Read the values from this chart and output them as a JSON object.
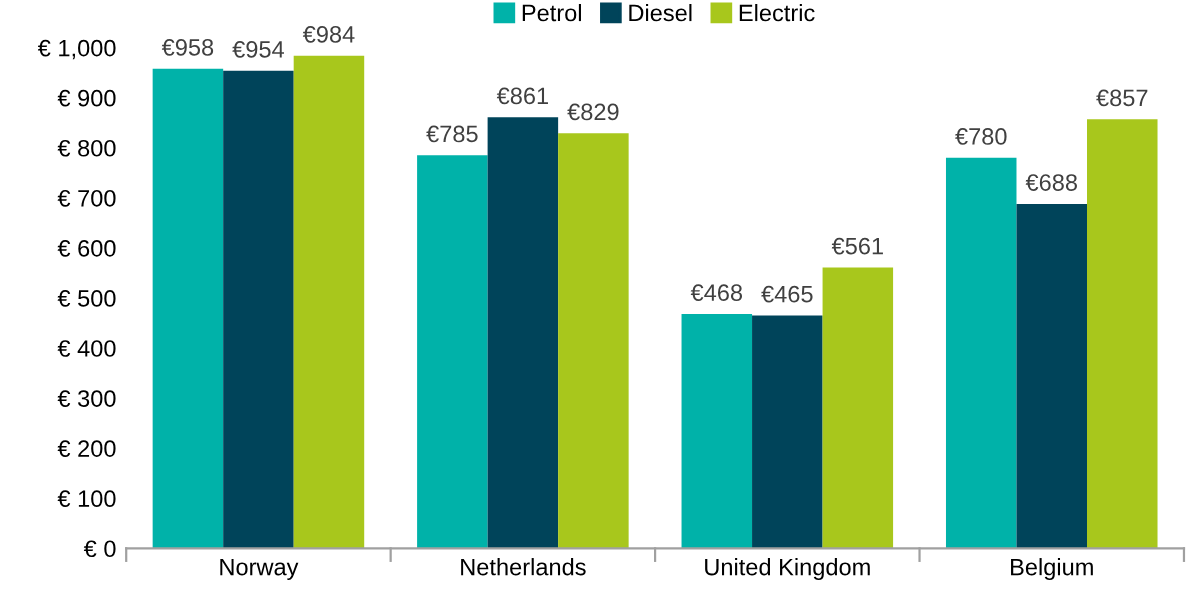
{
  "chart_data": {
    "type": "bar",
    "categories": [
      "Norway",
      "Netherlands",
      "United Kingdom",
      "Belgium"
    ],
    "series": [
      {
        "name": "Petrol",
        "color": "#00b2a9",
        "values": [
          958,
          785,
          468,
          780
        ],
        "value_labels": [
          "€958",
          "€785",
          "€468",
          "€780"
        ]
      },
      {
        "name": "Diesel",
        "color": "#00445a",
        "values": [
          954,
          861,
          465,
          688
        ],
        "value_labels": [
          "€954",
          "€861",
          "€465",
          "€688"
        ]
      },
      {
        "name": "Electric",
        "color": "#a8c71c",
        "values": [
          984,
          829,
          561,
          857
        ],
        "value_labels": [
          "€984",
          "€829",
          "€561",
          "€857"
        ]
      }
    ],
    "ylim": [
      0,
      1000
    ],
    "yticks": [
      {
        "value": 0,
        "label": "€ 0"
      },
      {
        "value": 100,
        "label": "€ 100"
      },
      {
        "value": 200,
        "label": "€ 200"
      },
      {
        "value": 300,
        "label": "€ 300"
      },
      {
        "value": 400,
        "label": "€ 400"
      },
      {
        "value": 500,
        "label": "€ 500"
      },
      {
        "value": 600,
        "label": "€ 600"
      },
      {
        "value": 700,
        "label": "€ 700"
      },
      {
        "value": 800,
        "label": "€ 800"
      },
      {
        "value": 900,
        "label": "€ 900"
      },
      {
        "value": 1000,
        "label": "€ 1,000"
      }
    ],
    "grid": false,
    "legend": "top"
  }
}
